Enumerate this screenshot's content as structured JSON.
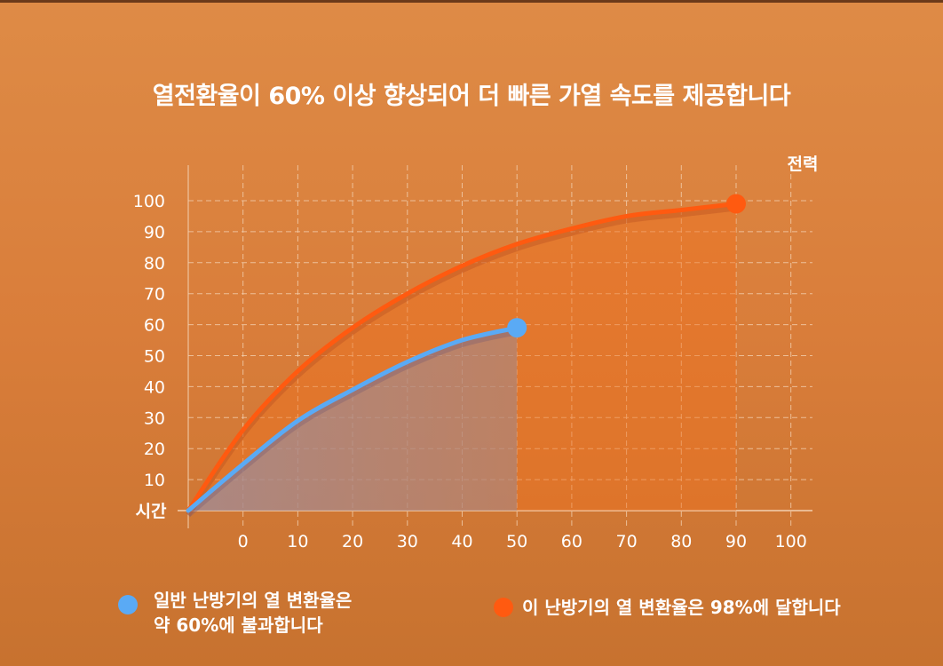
{
  "title": "열전환율이 60% 이상 향상되어 더 빠른 가열 속도를 제공합니다",
  "chart_data": {
    "type": "line",
    "title": "열전환율이 60% 이상 향상되어 더 빠른 가열 속도를 제공합니다",
    "xlabel": "시간",
    "ylabel": "전력",
    "x_ticks": [
      0,
      10,
      20,
      30,
      40,
      50,
      60,
      70,
      80,
      90,
      100
    ],
    "y_ticks": [
      10,
      20,
      30,
      40,
      50,
      60,
      70,
      80,
      90,
      100
    ],
    "xlim": [
      -10,
      100
    ],
    "ylim": [
      0,
      100
    ],
    "grid": true,
    "legend_placement": "bottom",
    "series": [
      {
        "name": "일반 난방기의 열 변환율은 약 60%에 불과합니다",
        "color": "#5aaaf5",
        "x": [
          -10,
          0,
          10,
          20,
          30,
          40,
          50
        ],
        "y": [
          0,
          15,
          29,
          39,
          48,
          55,
          59
        ]
      },
      {
        "name": "이 난방기의 열 변환율은 98%에 달합니다",
        "color": "#ff5a10",
        "x": [
          -10,
          0,
          10,
          20,
          30,
          40,
          50,
          60,
          70,
          80,
          90
        ],
        "y": [
          0,
          26,
          45,
          59,
          70,
          79,
          86,
          91,
          95,
          97,
          99
        ]
      }
    ]
  },
  "legend": {
    "blue_line1": "일반 난방기의 열 변환율은",
    "blue_line2": "약 60%에 불과합니다",
    "orange": "이 난방기의 열 변환율은 98%에 달합니다"
  }
}
